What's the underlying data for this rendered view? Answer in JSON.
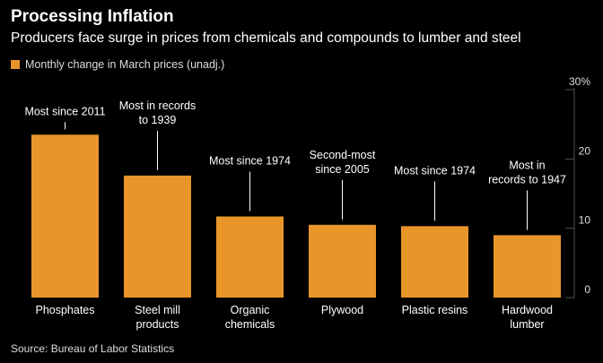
{
  "header": {
    "title": "Processing Inflation",
    "subtitle": "Producers face surge in prices from chemicals and compounds to lumber and steel"
  },
  "source": "Source: Bureau of Labor Statistics",
  "colors": {
    "bar": "#e8952a",
    "background": "#000000",
    "grid": "#555555"
  },
  "chart_data": {
    "type": "bar",
    "legend": "Monthly change in March prices (unadj.)",
    "categories": [
      [
        "Phosphates"
      ],
      [
        "Steel mill",
        "products"
      ],
      [
        "Organic",
        "chemicals"
      ],
      [
        "Plywood"
      ],
      [
        "Plastic resins"
      ],
      [
        "Hardwood",
        "lumber"
      ]
    ],
    "values": [
      23.5,
      17.6,
      11.7,
      10.5,
      10.3,
      9.0
    ],
    "annotations": [
      [
        "Most since 2011"
      ],
      [
        "Most in records",
        "to 1939"
      ],
      [
        "Most since 1974"
      ],
      [
        "Second-most",
        "since 2005"
      ],
      [
        "Most since 1974"
      ],
      [
        "Most in",
        "records to 1947"
      ]
    ],
    "y_ticks": [
      "0",
      "10",
      "20",
      "30%"
    ],
    "y_tick_values": [
      0,
      10,
      20,
      30
    ],
    "ylim": [
      0,
      30
    ],
    "axis_side": "right"
  }
}
